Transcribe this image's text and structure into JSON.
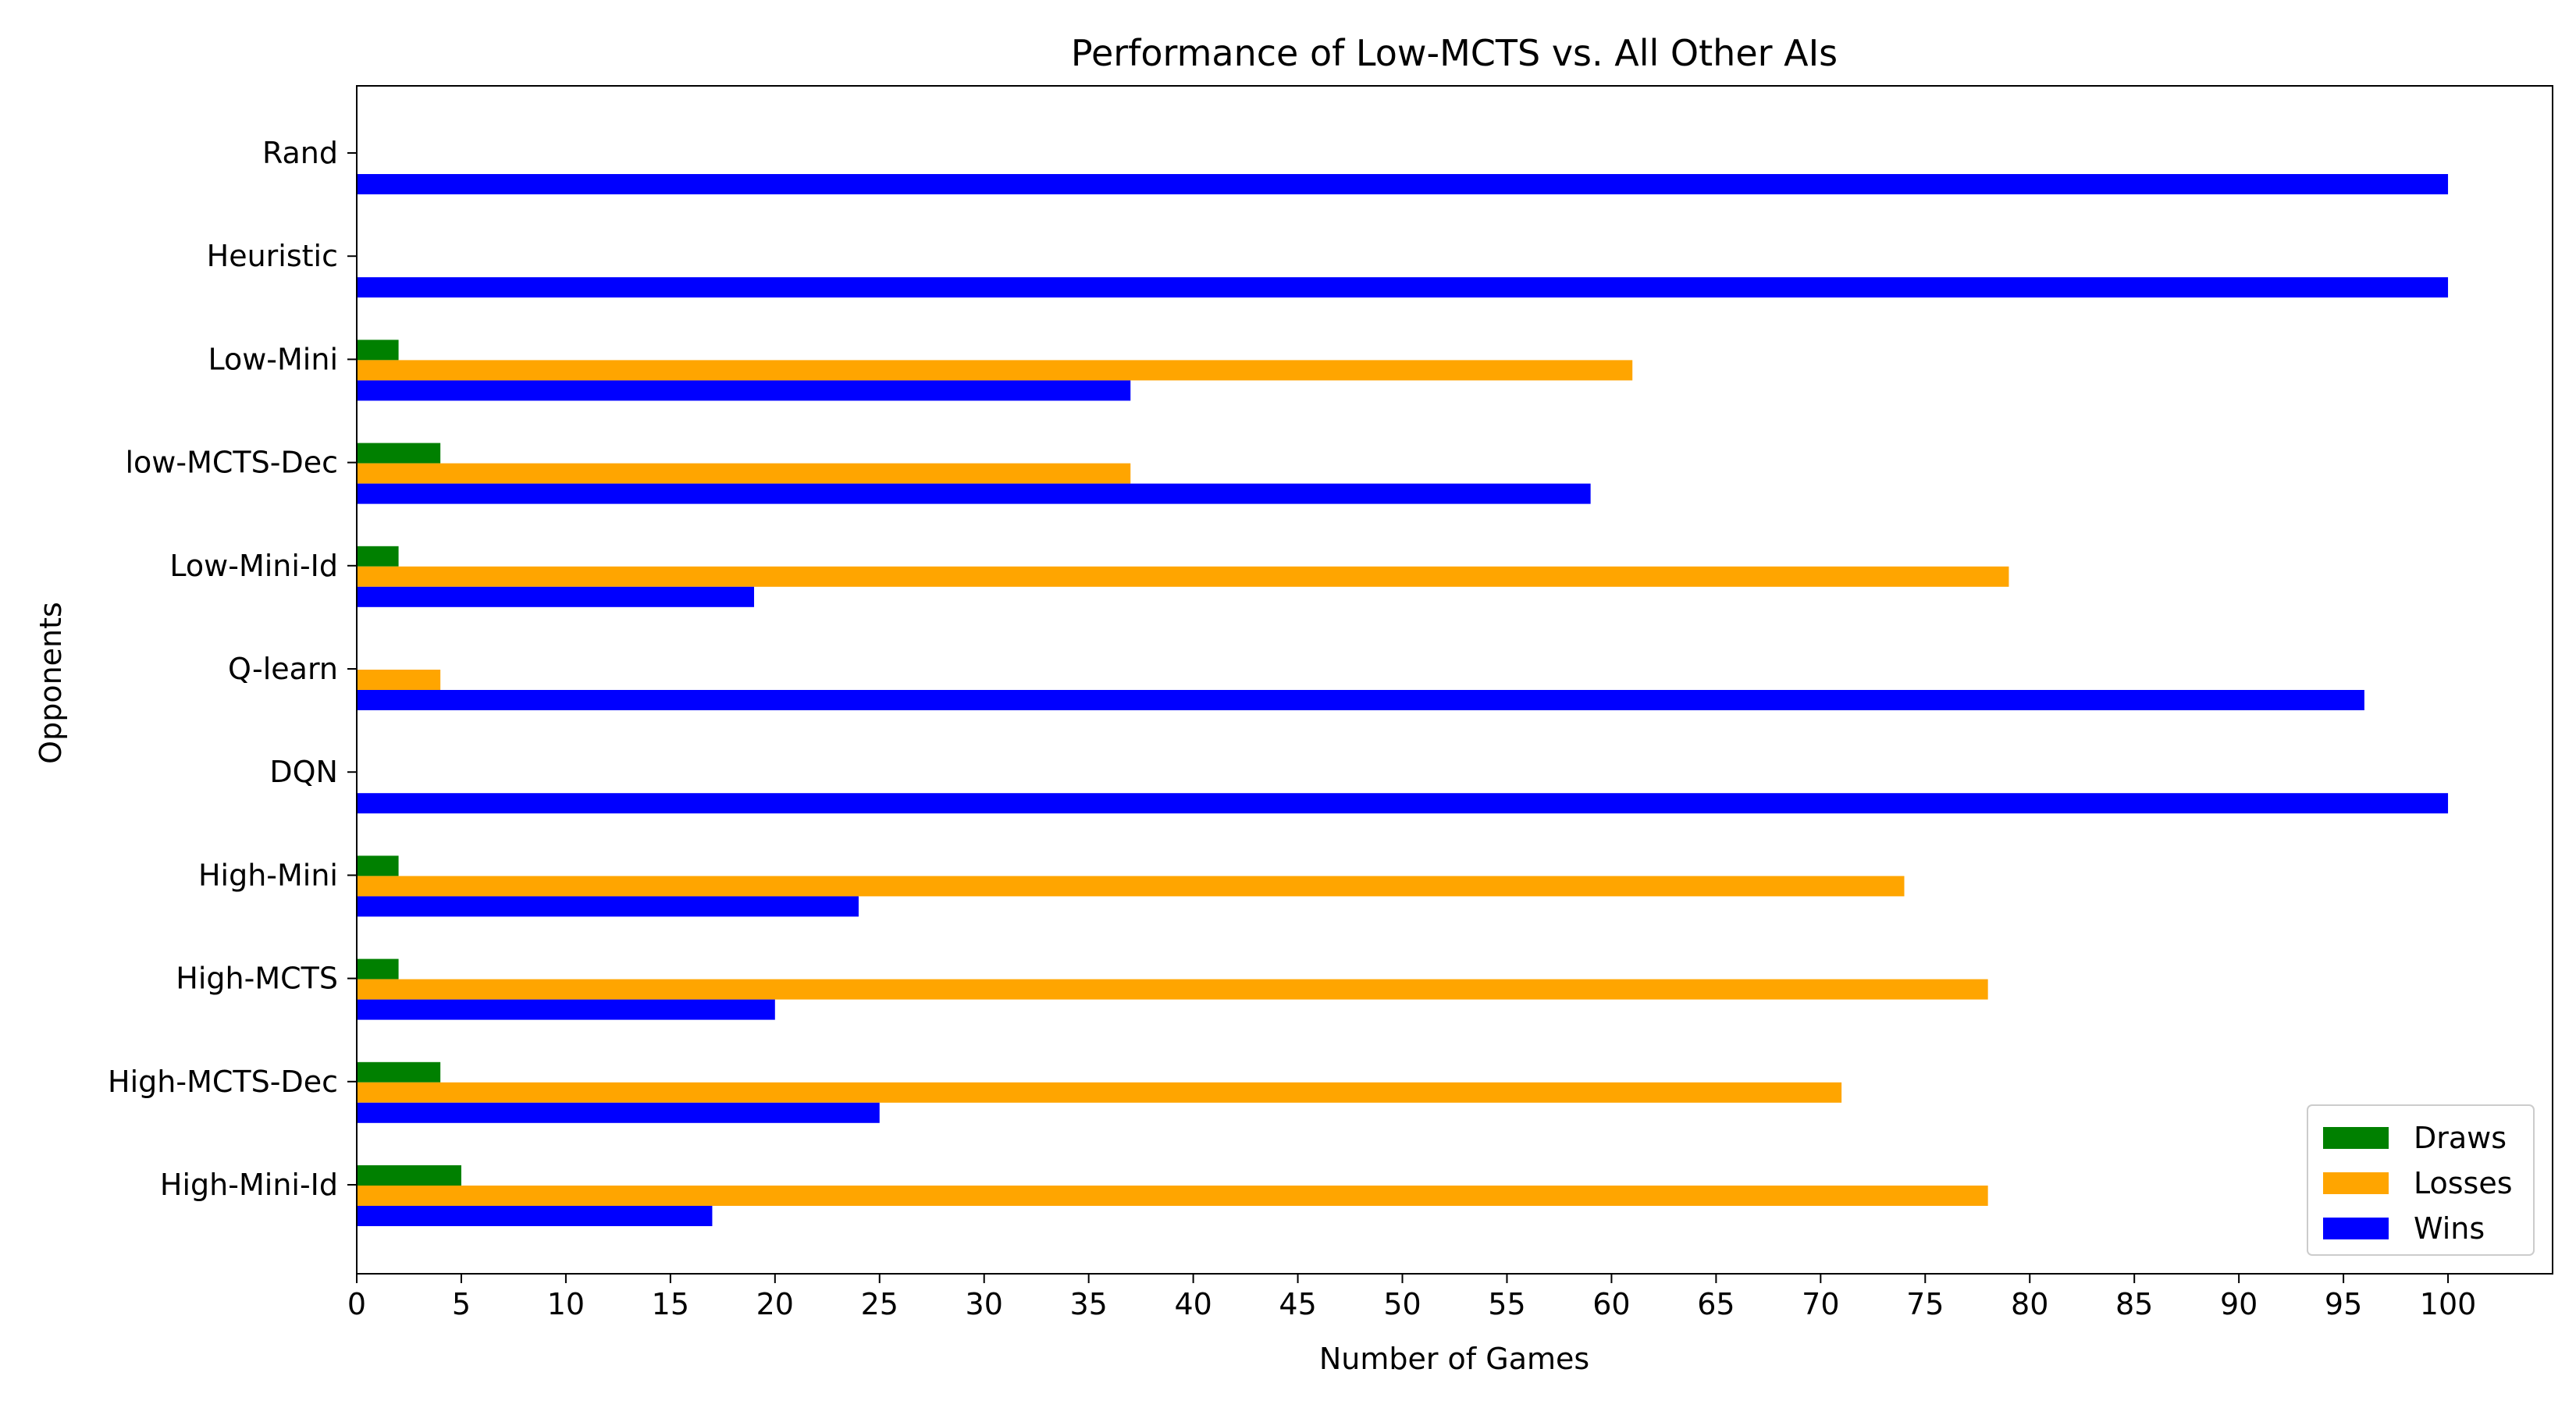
{
  "chart_data": {
    "type": "bar",
    "orientation": "horizontal",
    "title": "Performance of Low-MCTS vs. All Other AIs",
    "xlabel": "Number of Games",
    "ylabel": "Opponents",
    "categories": [
      "Rand",
      "Heuristic",
      "Low-Mini",
      "low-MCTS-Dec",
      "Low-Mini-Id",
      "Q-learn",
      "DQN",
      "High-Mini",
      "High-MCTS",
      "High-MCTS-Dec",
      "High-Mini-Id"
    ],
    "series": [
      {
        "name": "Draws",
        "color": "#008000",
        "values": [
          0,
          0,
          2,
          4,
          2,
          0,
          0,
          2,
          2,
          4,
          5
        ]
      },
      {
        "name": "Losses",
        "color": "#ffa500",
        "values": [
          0,
          0,
          61,
          37,
          79,
          4,
          0,
          74,
          78,
          71,
          78
        ]
      },
      {
        "name": "Wins",
        "color": "#0000ff",
        "values": [
          100,
          100,
          37,
          59,
          19,
          96,
          100,
          24,
          20,
          25,
          17
        ]
      }
    ],
    "xticks": [
      "0",
      "5",
      "10",
      "15",
      "20",
      "25",
      "30",
      "35",
      "40",
      "45",
      "50",
      "55",
      "60",
      "65",
      "70",
      "75",
      "80",
      "85",
      "90",
      "95",
      "100"
    ],
    "xlim": [
      0,
      105
    ],
    "legend_position": "lower-right",
    "grid": false
  }
}
